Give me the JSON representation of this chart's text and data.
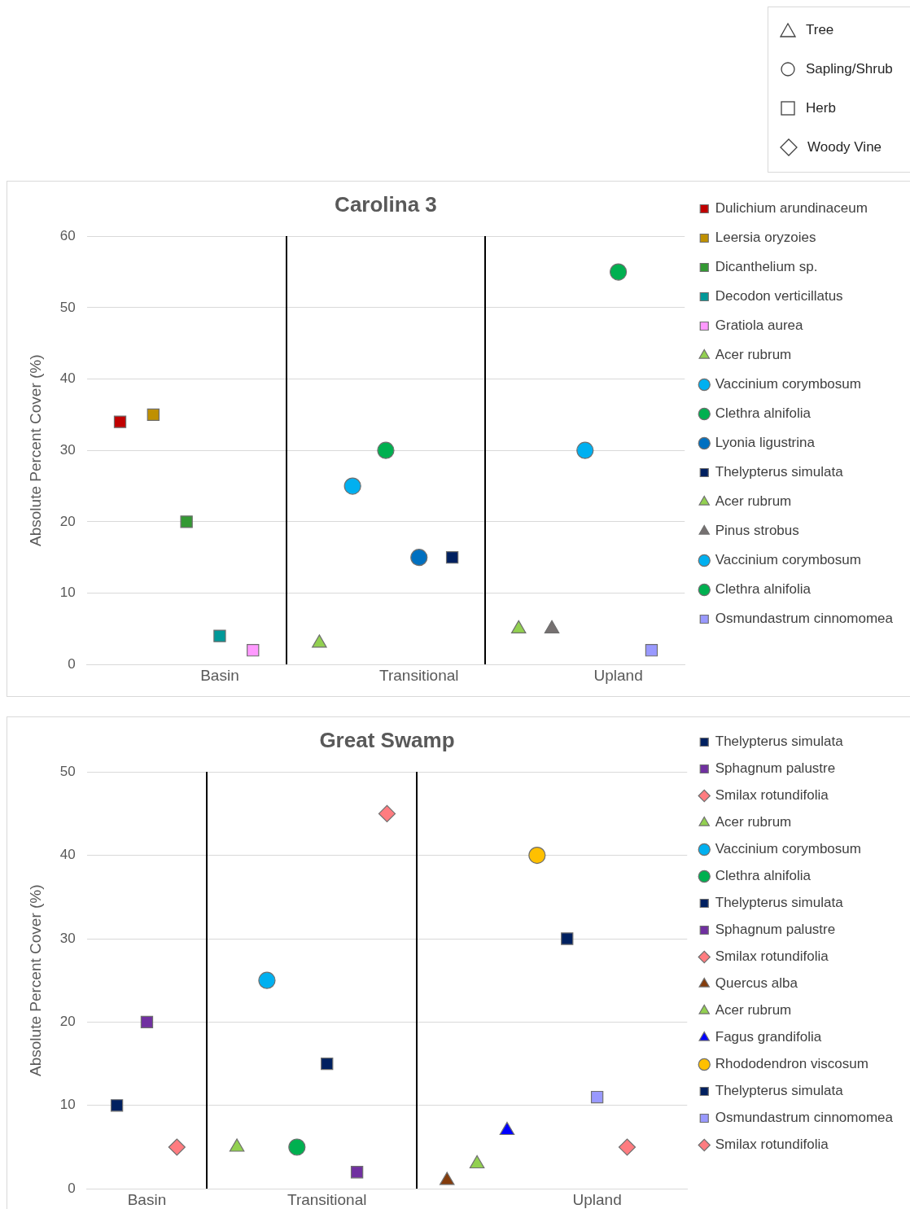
{
  "chart_data": [
    {
      "type": "other",
      "annotations": [
        "Tree",
        "Sapling/Shrub",
        "Herb",
        "Woody Vine"
      ]
    },
    {
      "type": "scatter",
      "title": "Carolina 3",
      "ylabel": "Absolute Percent Cover (%)",
      "categories": [
        null,
        null,
        null,
        null,
        "Basin",
        null,
        null,
        null,
        null,
        null,
        "Transitional",
        null,
        null,
        null,
        null,
        null,
        "Upland",
        null,
        null
      ],
      "ylim": [
        0,
        60
      ],
      "yticks": [
        0,
        10,
        20,
        30,
        40,
        50,
        60
      ],
      "grid": "y",
      "legend": "right",
      "series": [
        {
          "name": "Dulichium arundinaceum",
          "color": "#c00000",
          "marker": "square",
          "values": [
            null,
            34,
            null,
            null,
            null,
            null,
            null,
            null,
            null,
            null,
            null,
            null,
            null,
            null,
            null,
            null,
            null,
            null,
            null
          ]
        },
        {
          "name": "Leersia oryzoies",
          "color": "#bf9000",
          "marker": "square",
          "values": [
            null,
            null,
            35,
            null,
            null,
            null,
            null,
            null,
            null,
            null,
            null,
            null,
            null,
            null,
            null,
            null,
            null,
            null,
            null
          ]
        },
        {
          "name": "Dicanthelium sp.",
          "color": "#339933",
          "marker": "square",
          "values": [
            null,
            null,
            null,
            20,
            null,
            null,
            null,
            null,
            null,
            null,
            null,
            null,
            null,
            null,
            null,
            null,
            null,
            null,
            null
          ]
        },
        {
          "name": "Decodon verticillatus",
          "color": "#009999",
          "marker": "square",
          "values": [
            null,
            null,
            null,
            null,
            4,
            null,
            null,
            null,
            null,
            null,
            null,
            null,
            null,
            null,
            null,
            null,
            null,
            null,
            null
          ]
        },
        {
          "name": "Gratiola aurea",
          "color": "#ff99ff",
          "marker": "square",
          "values": [
            null,
            null,
            null,
            null,
            null,
            2,
            null,
            null,
            null,
            null,
            null,
            null,
            null,
            null,
            null,
            null,
            null,
            null,
            null
          ]
        },
        {
          "name": "Acer rubrum",
          "color": "#92d050",
          "marker": "triangle",
          "values": [
            null,
            null,
            null,
            null,
            null,
            null,
            null,
            3,
            null,
            null,
            null,
            null,
            null,
            null,
            null,
            null,
            null,
            null,
            null
          ]
        },
        {
          "name": "Vaccinium corymbosum",
          "color": "#00b0f0",
          "marker": "circle",
          "values": [
            null,
            null,
            null,
            null,
            null,
            null,
            null,
            null,
            25,
            null,
            null,
            null,
            null,
            null,
            null,
            null,
            null,
            null,
            null
          ]
        },
        {
          "name": "Clethra alnifolia",
          "color": "#00b050",
          "marker": "circle",
          "values": [
            null,
            null,
            null,
            null,
            null,
            null,
            null,
            null,
            null,
            30,
            null,
            null,
            null,
            null,
            null,
            null,
            null,
            null,
            null
          ]
        },
        {
          "name": "Lyonia ligustrina",
          "color": "#0070c0",
          "marker": "circle",
          "values": [
            null,
            null,
            null,
            null,
            null,
            null,
            null,
            null,
            null,
            null,
            15,
            null,
            null,
            null,
            null,
            null,
            null,
            null,
            null
          ]
        },
        {
          "name": "Thelypterus simulata",
          "color": "#002060",
          "marker": "square",
          "values": [
            null,
            null,
            null,
            null,
            null,
            null,
            null,
            null,
            null,
            null,
            null,
            15,
            null,
            null,
            null,
            null,
            null,
            null,
            null
          ]
        },
        {
          "name": "Acer rubrum",
          "color": "#92d050",
          "marker": "triangle",
          "values": [
            null,
            null,
            null,
            null,
            null,
            null,
            null,
            null,
            null,
            null,
            null,
            null,
            null,
            5,
            null,
            null,
            null,
            null,
            null
          ]
        },
        {
          "name": "Pinus strobus",
          "color": "#767171",
          "marker": "triangle",
          "values": [
            null,
            null,
            null,
            null,
            null,
            null,
            null,
            null,
            null,
            null,
            null,
            null,
            null,
            null,
            5,
            null,
            null,
            null,
            null
          ]
        },
        {
          "name": "Vaccinium corymbosum",
          "color": "#00b0f0",
          "marker": "circle",
          "values": [
            null,
            null,
            null,
            null,
            null,
            null,
            null,
            null,
            null,
            null,
            null,
            null,
            null,
            null,
            null,
            30,
            null,
            null,
            null
          ]
        },
        {
          "name": "Clethra alnifolia",
          "color": "#00b050",
          "marker": "circle",
          "values": [
            null,
            null,
            null,
            null,
            null,
            null,
            null,
            null,
            null,
            null,
            null,
            null,
            null,
            null,
            null,
            null,
            55,
            null,
            null
          ]
        },
        {
          "name": "Osmundastrum cinnomomea",
          "color": "#9999ff",
          "marker": "square",
          "values": [
            null,
            null,
            null,
            null,
            null,
            null,
            null,
            null,
            null,
            null,
            null,
            null,
            null,
            null,
            null,
            null,
            null,
            2,
            null
          ]
        }
      ]
    },
    {
      "type": "scatter",
      "title": "Great Swamp",
      "ylabel": "Absolute Percent Cover (%)",
      "categories": [
        null,
        null,
        "Basin",
        null,
        null,
        null,
        null,
        null,
        "Transitional",
        null,
        null,
        null,
        null,
        null,
        null,
        null,
        null,
        "Upland",
        null,
        null,
        null
      ],
      "ylim": [
        0,
        50
      ],
      "yticks": [
        0,
        10,
        20,
        30,
        40,
        50
      ],
      "grid": "y",
      "legend": "right",
      "series": [
        {
          "name": "Thelypterus simulata",
          "color": "#002060",
          "marker": "square",
          "values": [
            null,
            10,
            null,
            null,
            null,
            null,
            null,
            null,
            null,
            null,
            null,
            null,
            null,
            null,
            null,
            null,
            null,
            null,
            null,
            null,
            null
          ]
        },
        {
          "name": "Sphagnum palustre",
          "color": "#7030a0",
          "marker": "square",
          "values": [
            null,
            null,
            20,
            null,
            null,
            null,
            null,
            null,
            null,
            null,
            null,
            null,
            null,
            null,
            null,
            null,
            null,
            null,
            null,
            null,
            null
          ]
        },
        {
          "name": "Smilax rotundifolia",
          "color": "#ff7c80",
          "marker": "diamond",
          "values": [
            null,
            null,
            null,
            5,
            null,
            null,
            null,
            null,
            null,
            null,
            null,
            null,
            null,
            null,
            null,
            null,
            null,
            null,
            null,
            null,
            null
          ]
        },
        {
          "name": "Acer rubrum",
          "color": "#92d050",
          "marker": "triangle",
          "values": [
            null,
            null,
            null,
            null,
            null,
            5,
            null,
            null,
            null,
            null,
            null,
            null,
            null,
            null,
            null,
            null,
            null,
            null,
            null,
            null,
            null
          ]
        },
        {
          "name": "Vaccinium corymbosum",
          "color": "#00b0f0",
          "marker": "circle",
          "values": [
            null,
            null,
            null,
            null,
            null,
            null,
            25,
            null,
            null,
            null,
            null,
            null,
            null,
            null,
            null,
            null,
            null,
            null,
            null,
            null,
            null
          ]
        },
        {
          "name": "Clethra alnifolia",
          "color": "#00b050",
          "marker": "circle",
          "values": [
            null,
            null,
            null,
            null,
            null,
            null,
            null,
            5,
            null,
            null,
            null,
            null,
            null,
            null,
            null,
            null,
            null,
            null,
            null,
            null,
            null
          ]
        },
        {
          "name": "Thelypterus simulata",
          "color": "#002060",
          "marker": "square",
          "values": [
            null,
            null,
            null,
            null,
            null,
            null,
            null,
            null,
            15,
            null,
            null,
            null,
            null,
            null,
            null,
            null,
            null,
            null,
            null,
            null,
            null
          ]
        },
        {
          "name": "Sphagnum palustre",
          "color": "#7030a0",
          "marker": "square",
          "values": [
            null,
            null,
            null,
            null,
            null,
            null,
            null,
            null,
            null,
            2,
            null,
            null,
            null,
            null,
            null,
            null,
            null,
            null,
            null,
            null,
            null
          ]
        },
        {
          "name": "Smilax rotundifolia",
          "color": "#ff7c80",
          "marker": "diamond",
          "values": [
            null,
            null,
            null,
            null,
            null,
            null,
            null,
            null,
            null,
            null,
            45,
            null,
            null,
            null,
            null,
            null,
            null,
            null,
            null,
            null,
            null
          ]
        },
        {
          "name": "Quercus alba",
          "color": "#843c0c",
          "marker": "triangle",
          "values": [
            null,
            null,
            null,
            null,
            null,
            null,
            null,
            null,
            null,
            null,
            null,
            null,
            1,
            null,
            null,
            null,
            null,
            null,
            null,
            null,
            null
          ]
        },
        {
          "name": "Acer rubrum",
          "color": "#92d050",
          "marker": "triangle",
          "values": [
            null,
            null,
            null,
            null,
            null,
            null,
            null,
            null,
            null,
            null,
            null,
            null,
            null,
            3,
            null,
            null,
            null,
            null,
            null,
            null,
            null
          ]
        },
        {
          "name": "Fagus grandifolia",
          "color": "#0000ff",
          "marker": "triangle",
          "values": [
            null,
            null,
            null,
            null,
            null,
            null,
            null,
            null,
            null,
            null,
            null,
            null,
            null,
            null,
            7,
            null,
            null,
            null,
            null,
            null,
            null
          ]
        },
        {
          "name": "Rhododendron viscosum",
          "color": "#ffc000",
          "marker": "circle",
          "values": [
            null,
            null,
            null,
            null,
            null,
            null,
            null,
            null,
            null,
            null,
            null,
            null,
            null,
            null,
            null,
            40,
            null,
            null,
            null,
            null,
            null
          ]
        },
        {
          "name": "Thelypterus simulata",
          "color": "#002060",
          "marker": "square",
          "values": [
            null,
            null,
            null,
            null,
            null,
            null,
            null,
            null,
            null,
            null,
            null,
            null,
            null,
            null,
            null,
            null,
            30,
            null,
            null,
            null,
            null
          ]
        },
        {
          "name": "Osmundastrum cinnomomea",
          "color": "#9999ff",
          "marker": "square",
          "values": [
            null,
            null,
            null,
            null,
            null,
            null,
            null,
            null,
            null,
            null,
            null,
            null,
            null,
            null,
            null,
            null,
            null,
            11,
            null,
            null,
            null
          ]
        },
        {
          "name": "Smilax rotundifolia",
          "color": "#ff7c80",
          "marker": "diamond",
          "values": [
            null,
            null,
            null,
            null,
            null,
            null,
            null,
            null,
            null,
            null,
            null,
            null,
            null,
            null,
            null,
            null,
            null,
            null,
            5,
            null,
            null
          ]
        }
      ]
    }
  ]
}
